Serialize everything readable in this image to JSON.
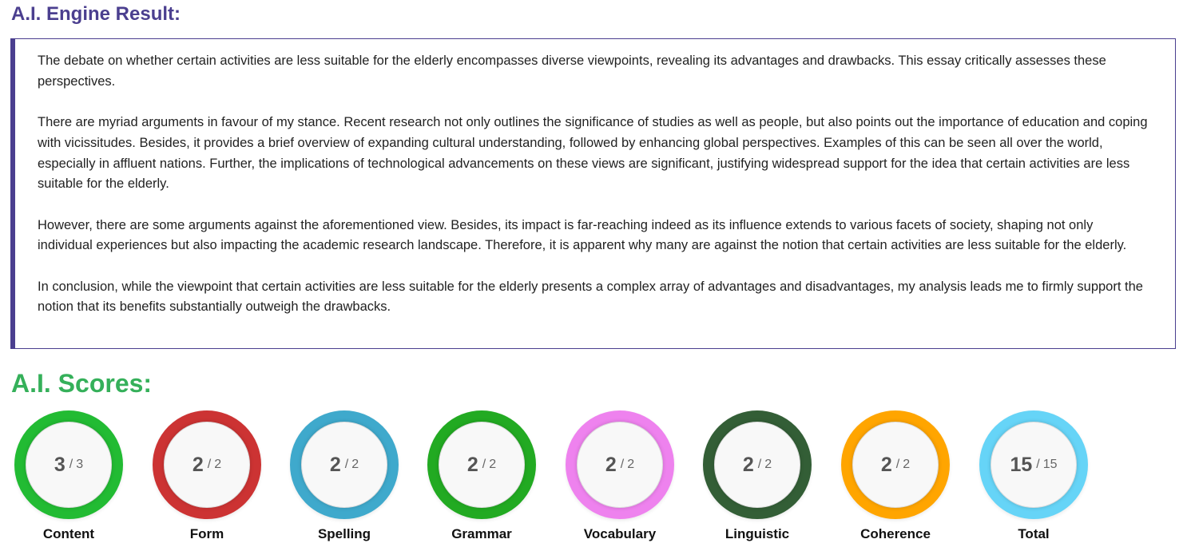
{
  "result_title": "A.I. Engine Result:",
  "essay": {
    "paragraphs": [
      "The debate on whether certain activities are less suitable for the elderly encompasses diverse viewpoints, revealing its advantages and drawbacks. This essay critically assesses these perspectives.",
      "There are myriad arguments in favour of my stance. Recent research not only outlines the significance of studies as well as people, but also points out the importance of education and coping with vicissitudes. Besides, it provides a brief overview of expanding cultural understanding, followed by enhancing global perspectives. Examples of this can be seen all over the world, especially in affluent nations. Further, the implications of technological advancements on these views are significant, justifying widespread support for the idea that certain activities are less suitable for the elderly.",
      "However, there are some arguments against the aforementioned view. Besides, its impact is far-reaching indeed as its influence extends to various facets of society, shaping not only individual experiences but also impacting the academic research landscape. Therefore, it is apparent why many are against the notion that certain activities are less suitable for the elderly.",
      "In conclusion, while the viewpoint that certain activities are less suitable for the elderly presents a complex array of advantages and disadvantages, my analysis leads me to firmly support the notion that its benefits substantially outweigh the drawbacks."
    ]
  },
  "scores_title": "A.I. Scores:",
  "scores": [
    {
      "label": "Content",
      "value": "3",
      "max": "3",
      "color": "#22bb33"
    },
    {
      "label": "Form",
      "value": "2",
      "max": "2",
      "color": "#cc3333"
    },
    {
      "label": "Spelling",
      "value": "2",
      "max": "2",
      "color": "#3fa9cc"
    },
    {
      "label": "Grammar",
      "value": "2",
      "max": "2",
      "color": "#22aa22"
    },
    {
      "label": "Vocabulary",
      "value": "2",
      "max": "2",
      "color": "#ee82ee"
    },
    {
      "label": "Linguistic",
      "value": "2",
      "max": "2",
      "color": "#335e36"
    },
    {
      "label": "Coherence",
      "value": "2",
      "max": "2",
      "color": "#ffa500"
    },
    {
      "label": "Total",
      "value": "15",
      "max": "15",
      "color": "#66d4f7"
    }
  ],
  "score_separator": "/",
  "colors": {
    "result_title": "#4b3f8f",
    "scores_title": "#35b05a",
    "essay_border": "#4b3f8f"
  }
}
